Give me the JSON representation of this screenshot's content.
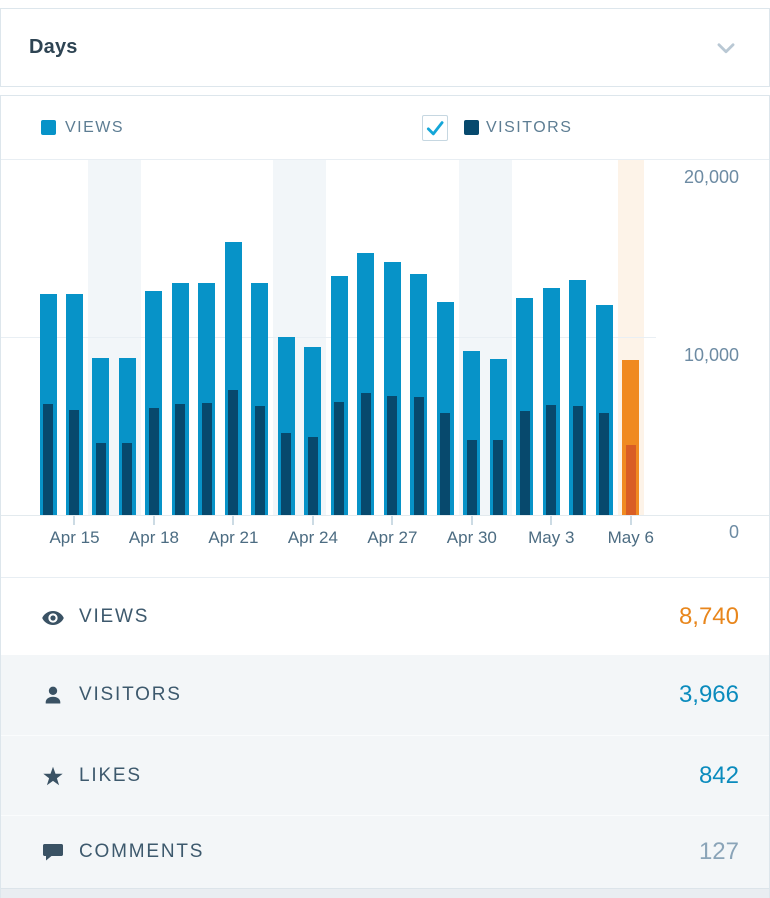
{
  "header": {
    "title": "Days"
  },
  "legend": {
    "views_label": "VIEWS",
    "visitors_label": "VISITORS",
    "visitors_checked": true
  },
  "colors": {
    "views_bar": "#0793c8",
    "visitors_bar": "#07496d",
    "today_views_bar": "#f08a21",
    "today_visitors_bar": "#d95d25",
    "today_column_bg": "#fdf3e8",
    "weekend_column_bg": "#f2f6f9",
    "views_value": "#e8861c",
    "link_value": "#0a8bbd",
    "muted_value": "#8aa4b8"
  },
  "chart_data": {
    "type": "bar",
    "unit": "day",
    "categories": [
      "Apr 14",
      "Apr 15",
      "Apr 16",
      "Apr 17",
      "Apr 18",
      "Apr 19",
      "Apr 20",
      "Apr 21",
      "Apr 22",
      "Apr 23",
      "Apr 24",
      "Apr 25",
      "Apr 26",
      "Apr 27",
      "Apr 28",
      "Apr 29",
      "Apr 30",
      "May 1",
      "May 2",
      "May 3",
      "May 4",
      "May 5",
      "May 6"
    ],
    "series": [
      {
        "name": "Views",
        "values": [
          12480,
          12480,
          8880,
          8880,
          12670,
          13080,
          13080,
          15450,
          13080,
          10050,
          9490,
          13500,
          14830,
          14270,
          13630,
          12040,
          9260,
          8820,
          12250,
          12840,
          13250,
          11890,
          8740
        ]
      },
      {
        "name": "Visitors",
        "values": [
          6270,
          5950,
          4090,
          4090,
          6020,
          6250,
          6320,
          7080,
          6170,
          4660,
          4430,
          6400,
          6870,
          6740,
          6650,
          5760,
          4240,
          4240,
          5890,
          6230,
          6130,
          5740,
          3966
        ]
      }
    ],
    "ylim": [
      0,
      20000
    ],
    "y_tick_labels": [
      "0",
      "10,000",
      "20,000"
    ],
    "x_ticks": [
      {
        "slot": 2,
        "label": "Apr 15"
      },
      {
        "slot": 5,
        "label": "Apr 18"
      },
      {
        "slot": 8,
        "label": "Apr 21"
      },
      {
        "slot": 11,
        "label": "Apr 24"
      },
      {
        "slot": 14,
        "label": "Apr 27"
      },
      {
        "slot": 17,
        "label": "Apr 30"
      },
      {
        "slot": 20,
        "label": "May 3"
      },
      {
        "slot": 23,
        "label": "May 6"
      }
    ],
    "weekend_slots": [
      [
        3,
        4
      ],
      [
        10,
        11
      ],
      [
        17,
        18
      ]
    ],
    "today_slot": 23,
    "grid": "horizontal",
    "legend_position": "top"
  },
  "summary": {
    "rows": [
      {
        "icon": "eye-icon",
        "label": "VIEWS",
        "value": "8,740",
        "value_color": "#e8861c",
        "row_bg": "#ffffff"
      },
      {
        "icon": "user-icon",
        "label": "VISITORS",
        "value": "3,966",
        "value_color": "#0a8bbd",
        "row_bg": "#f3f6f8"
      },
      {
        "icon": "star-icon",
        "label": "LIKES",
        "value": "842",
        "value_color": "#0a8bbd",
        "row_bg": "#f3f6f8"
      },
      {
        "icon": "comment-icon",
        "label": "COMMENTS",
        "value": "127",
        "value_color": "#8aa4b8",
        "row_bg": "#f3f6f8"
      }
    ]
  }
}
